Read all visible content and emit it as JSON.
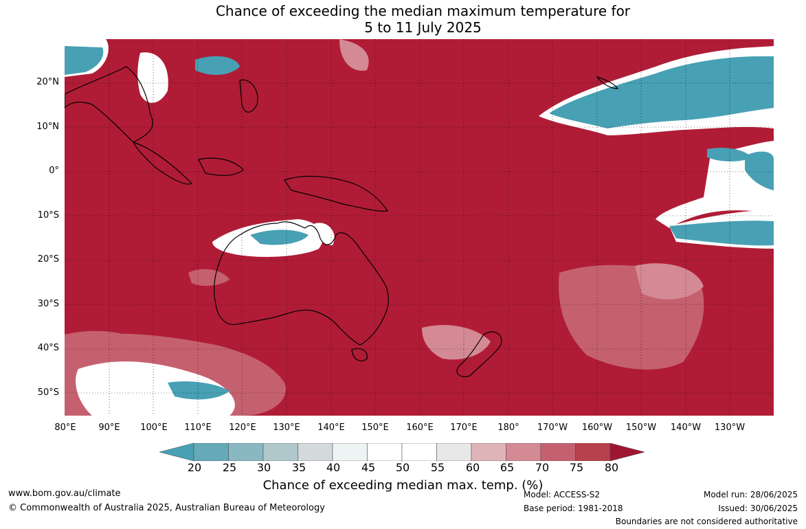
{
  "title": {
    "line1": "Chance of exceeding the median maximum temperature for",
    "line2": "5 to 11 July 2025"
  },
  "map": {
    "lat_labels": [
      "20°N",
      "10°N",
      "0°",
      "10°S",
      "20°S",
      "30°S",
      "40°S",
      "50°S"
    ],
    "lon_labels": [
      "80°E",
      "90°E",
      "100°E",
      "110°E",
      "120°E",
      "130°E",
      "140°E",
      "150°E",
      "160°E",
      "170°E",
      "180°",
      "170°W",
      "160°W",
      "150°W",
      "140°W",
      "130°W"
    ],
    "dominant_color": "#b01c36",
    "low_color": "#48a0b4"
  },
  "colorbar": {
    "ticks": [
      "20",
      "25",
      "30",
      "35",
      "40",
      "45",
      "50",
      "55",
      "60",
      "65",
      "70",
      "75",
      "80"
    ],
    "colors": [
      "#48a0b4",
      "#66a9b8",
      "#8ab8c2",
      "#b0c8cc",
      "#d2dadb",
      "#eef3f4",
      "#ffffff",
      "#ffffff",
      "#e8e8e8",
      "#dfb4b9",
      "#d48a94",
      "#c5616f",
      "#b8414e",
      "#a01632"
    ],
    "label": "Chance of exceeding median max. temp. (%)"
  },
  "footer": {
    "url": "www.bom.gov.au/climate",
    "copyright": "© Commonwealth of Australia 2025, Australian Bureau of Meteorology",
    "model": "Model: ACCESS-S2",
    "base_period": "Base period: 1981-2018",
    "model_run": "Model run: 28/06/2025",
    "issued": "Issued: 30/06/2025",
    "disclaimer": "Boundaries are not considered authoritative"
  }
}
